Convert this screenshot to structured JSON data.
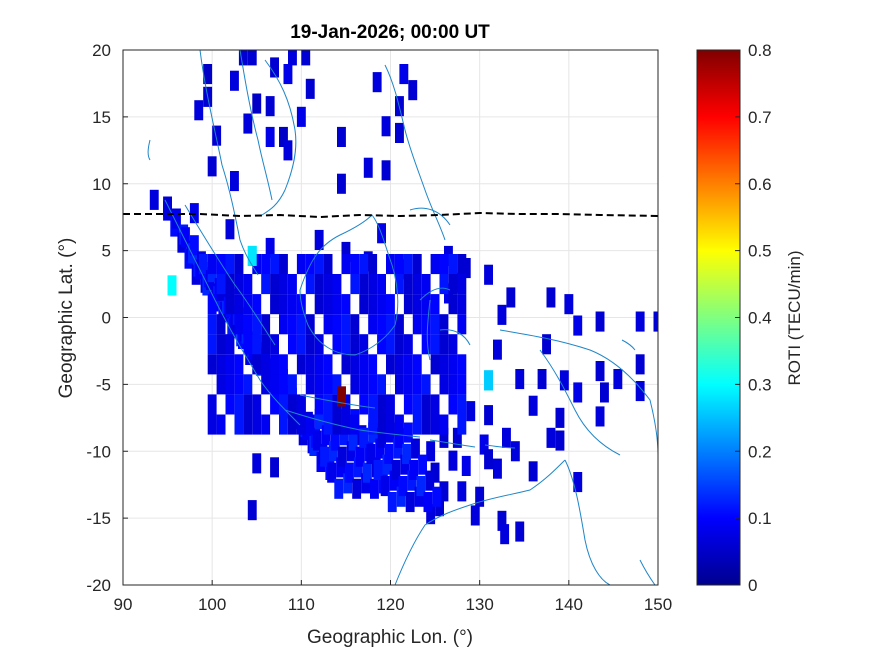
{
  "chart_data": {
    "type": "heatmap",
    "title": "19-Jan-2026; 00:00 UT",
    "xlabel": "Geographic Lon. (°)",
    "ylabel": "Geographic Lat. (°)",
    "xlim": [
      90,
      150
    ],
    "ylim": [
      -20,
      20
    ],
    "xticks": [
      "90",
      "100",
      "110",
      "120",
      "130",
      "140",
      "150"
    ],
    "yticks": [
      "20",
      "15",
      "10",
      "5",
      "0",
      "-5",
      "-10",
      "-15",
      "-20"
    ],
    "grid": true,
    "colorbar": {
      "label": "ROTI (TECU/min)",
      "colormap": "jet",
      "range": [
        0,
        0.8
      ],
      "ticks": [
        "0.8",
        "0.7",
        "0.6",
        "0.5",
        "0.4",
        "0.3",
        "0.2",
        "0.1",
        "0"
      ]
    },
    "cell_size_deg": [
      1,
      1.5
    ],
    "cells": [
      {
        "lon": 103.5,
        "lat": 19.6,
        "roti": 0.06
      },
      {
        "lon": 104.5,
        "lat": 19.6,
        "roti": 0.06
      },
      {
        "lon": 109.0,
        "lat": 19.6,
        "roti": 0.07
      },
      {
        "lon": 110.5,
        "lat": 19.6,
        "roti": 0.06
      },
      {
        "lon": 99.5,
        "lat": 18.2,
        "roti": 0.05
      },
      {
        "lon": 102.5,
        "lat": 17.7,
        "roti": 0.07
      },
      {
        "lon": 107.0,
        "lat": 18.7,
        "roti": 0.06
      },
      {
        "lon": 108.5,
        "lat": 18.2,
        "roti": 0.08
      },
      {
        "lon": 111.0,
        "lat": 17.1,
        "roti": 0.06
      },
      {
        "lon": 118.5,
        "lat": 17.6,
        "roti": 0.07
      },
      {
        "lon": 121.5,
        "lat": 18.2,
        "roti": 0.08
      },
      {
        "lon": 122.5,
        "lat": 17.0,
        "roti": 0.06
      },
      {
        "lon": 99.5,
        "lat": 16.5,
        "roti": 0.06
      },
      {
        "lon": 98.5,
        "lat": 15.5,
        "roti": 0.07
      },
      {
        "lon": 105.0,
        "lat": 16.0,
        "roti": 0.05
      },
      {
        "lon": 106.5,
        "lat": 15.8,
        "roti": 0.06
      },
      {
        "lon": 110.0,
        "lat": 15.0,
        "roti": 0.08
      },
      {
        "lon": 121.0,
        "lat": 15.8,
        "roti": 0.06
      },
      {
        "lon": 104.0,
        "lat": 14.5,
        "roti": 0.07
      },
      {
        "lon": 100.5,
        "lat": 13.6,
        "roti": 0.06
      },
      {
        "lon": 106.5,
        "lat": 13.5,
        "roti": 0.08
      },
      {
        "lon": 108.0,
        "lat": 13.5,
        "roti": 0.05
      },
      {
        "lon": 114.5,
        "lat": 13.5,
        "roti": 0.06
      },
      {
        "lon": 119.5,
        "lat": 14.3,
        "roti": 0.07
      },
      {
        "lon": 121.0,
        "lat": 13.8,
        "roti": 0.06
      },
      {
        "lon": 108.5,
        "lat": 12.5,
        "roti": 0.07
      },
      {
        "lon": 100.0,
        "lat": 11.3,
        "roti": 0.06
      },
      {
        "lon": 117.5,
        "lat": 11.2,
        "roti": 0.07
      },
      {
        "lon": 119.5,
        "lat": 11.0,
        "roti": 0.06
      },
      {
        "lon": 102.5,
        "lat": 10.2,
        "roti": 0.07
      },
      {
        "lon": 114.5,
        "lat": 10.0,
        "roti": 0.06
      },
      {
        "lon": 104.5,
        "lat": 4.6,
        "roti": 0.28
      },
      {
        "lon": 95.5,
        "lat": 2.4,
        "roti": 0.3
      },
      {
        "lon": 114.5,
        "lat": -5.9,
        "roti": 0.8
      },
      {
        "lon": 131.0,
        "lat": -4.7,
        "roti": 0.26
      },
      {
        "lon": 93.5,
        "lat": 8.8,
        "roti": 0.07
      },
      {
        "lon": 95.0,
        "lat": 8.3,
        "roti": 0.06
      },
      {
        "lon": 98.0,
        "lat": 7.8,
        "roti": 0.08
      },
      {
        "lon": 102.0,
        "lat": 6.6,
        "roti": 0.07
      },
      {
        "lon": 106.5,
        "lat": 5.2,
        "roti": 0.08
      },
      {
        "lon": 112.0,
        "lat": 5.8,
        "roti": 0.07
      },
      {
        "lon": 115.0,
        "lat": 4.9,
        "roti": 0.06
      },
      {
        "lon": 117.5,
        "lat": 4.2,
        "roti": 0.07
      },
      {
        "lon": 119.0,
        "lat": 6.3,
        "roti": 0.08
      },
      {
        "lon": 121.5,
        "lat": 3.6,
        "roti": 0.06
      },
      {
        "lon": 126.5,
        "lat": 4.6,
        "roti": 0.07
      },
      {
        "lon": 128.5,
        "lat": 3.7,
        "roti": 0.06
      },
      {
        "lon": 131.0,
        "lat": 3.2,
        "roti": 0.07
      },
      {
        "lon": 133.5,
        "lat": 1.5,
        "roti": 0.06
      },
      {
        "lon": 138.0,
        "lat": 1.5,
        "roti": 0.06
      },
      {
        "lon": 140.0,
        "lat": 1.0,
        "roti": 0.07
      },
      {
        "lon": 143.5,
        "lat": -0.3,
        "roti": 0.06
      },
      {
        "lon": 148.0,
        "lat": -0.3,
        "roti": 0.07
      },
      {
        "lon": 150.0,
        "lat": -0.3,
        "roti": 0.06
      },
      {
        "lon": 141.0,
        "lat": -0.6,
        "roti": 0.08
      },
      {
        "lon": 132.0,
        "lat": -2.4,
        "roti": 0.07
      },
      {
        "lon": 137.5,
        "lat": -2.0,
        "roti": 0.06
      },
      {
        "lon": 134.5,
        "lat": -4.6,
        "roti": 0.07
      },
      {
        "lon": 137.0,
        "lat": -4.6,
        "roti": 0.06
      },
      {
        "lon": 139.5,
        "lat": -4.7,
        "roti": 0.07
      },
      {
        "lon": 143.5,
        "lat": -4.0,
        "roti": 0.06
      },
      {
        "lon": 145.5,
        "lat": -4.6,
        "roti": 0.07
      },
      {
        "lon": 148.0,
        "lat": -3.5,
        "roti": 0.06
      },
      {
        "lon": 148.0,
        "lat": -5.5,
        "roti": 0.07
      },
      {
        "lon": 141.0,
        "lat": -5.6,
        "roti": 0.08
      },
      {
        "lon": 144.0,
        "lat": -5.6,
        "roti": 0.06
      },
      {
        "lon": 136.0,
        "lat": -6.6,
        "roti": 0.07
      },
      {
        "lon": 139.0,
        "lat": -7.5,
        "roti": 0.06
      },
      {
        "lon": 143.5,
        "lat": -7.4,
        "roti": 0.07
      },
      {
        "lon": 129.0,
        "lat": -7.0,
        "roti": 0.07
      },
      {
        "lon": 131.0,
        "lat": -7.3,
        "roti": 0.06
      },
      {
        "lon": 139.0,
        "lat": -9.2,
        "roti": 0.06
      },
      {
        "lon": 138.0,
        "lat": -9.0,
        "roti": 0.07
      },
      {
        "lon": 127.5,
        "lat": -9.0,
        "roti": 0.06
      },
      {
        "lon": 133.0,
        "lat": -9.0,
        "roti": 0.07
      },
      {
        "lon": 130.5,
        "lat": -9.5,
        "roti": 0.08
      },
      {
        "lon": 126.0,
        "lat": -9.0,
        "roti": 0.06
      },
      {
        "lon": 124.5,
        "lat": -10.0,
        "roti": 0.07
      },
      {
        "lon": 125.0,
        "lat": -11.6,
        "roti": 0.06
      },
      {
        "lon": 127.0,
        "lat": -10.7,
        "roti": 0.07
      },
      {
        "lon": 128.5,
        "lat": -11.1,
        "roti": 0.08
      },
      {
        "lon": 131.0,
        "lat": -10.6,
        "roti": 0.06
      },
      {
        "lon": 134.0,
        "lat": -10.0,
        "roti": 0.07
      },
      {
        "lon": 136.0,
        "lat": -11.5,
        "roti": 0.06
      },
      {
        "lon": 132.0,
        "lat": -11.3,
        "roti": 0.07
      },
      {
        "lon": 126.0,
        "lat": -13.0,
        "roti": 0.06
      },
      {
        "lon": 128.0,
        "lat": -13.0,
        "roti": 0.07
      },
      {
        "lon": 130.0,
        "lat": -13.4,
        "roti": 0.06
      },
      {
        "lon": 124.5,
        "lat": -14.7,
        "roti": 0.07
      },
      {
        "lon": 125.5,
        "lat": -14.1,
        "roti": 0.06
      },
      {
        "lon": 129.5,
        "lat": -14.8,
        "roti": 0.07
      },
      {
        "lon": 132.5,
        "lat": -15.2,
        "roti": 0.06
      },
      {
        "lon": 132.8,
        "lat": -16.2,
        "roti": 0.07
      },
      {
        "lon": 134.5,
        "lat": -16.0,
        "roti": 0.06
      },
      {
        "lon": 141.0,
        "lat": -12.3,
        "roti": 0.07
      },
      {
        "lon": 107.0,
        "lat": -11.2,
        "roti": 0.06
      },
      {
        "lon": 105.0,
        "lat": -10.9,
        "roti": 0.07
      },
      {
        "lon": 104.5,
        "lat": -14.4,
        "roti": 0.06
      },
      {
        "lon": 126.5,
        "lat": 1.8,
        "roti": 0.08
      },
      {
        "lon": 127.5,
        "lat": 2.6,
        "roti": 0.07
      },
      {
        "lon": 132.5,
        "lat": 0.2,
        "roti": 0.07
      }
    ]
  }
}
